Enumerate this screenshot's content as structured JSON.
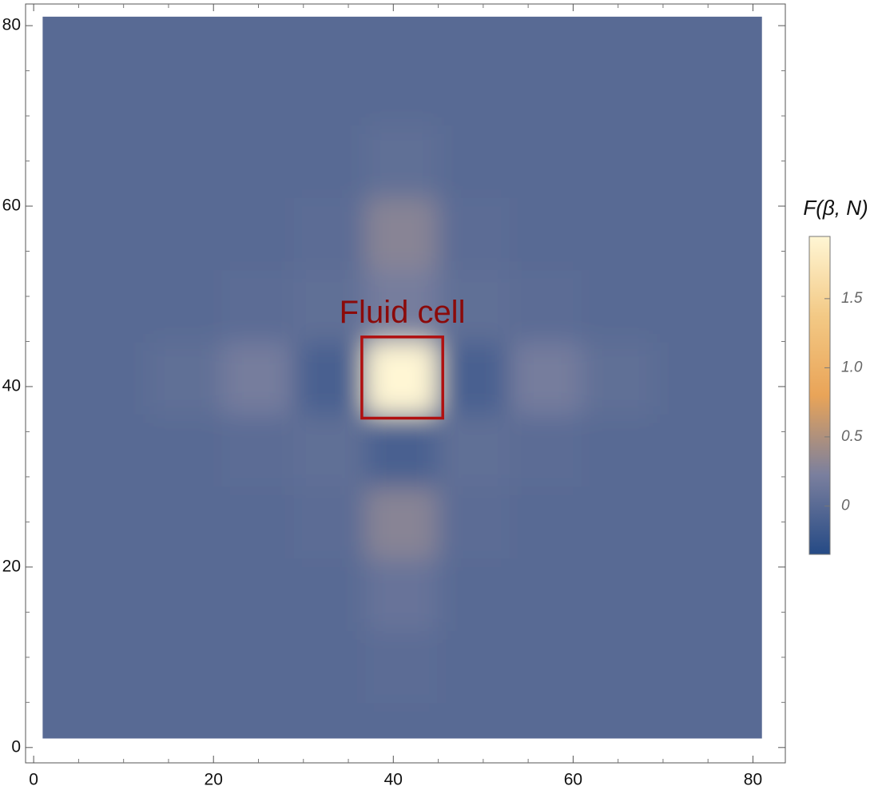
{
  "chart_data": {
    "type": "heatmap",
    "x": [
      1,
      9,
      17,
      25,
      33,
      41,
      49,
      57,
      65,
      73,
      81
    ],
    "y": [
      1,
      9,
      17,
      25,
      33,
      41,
      49,
      57,
      65,
      73,
      81
    ],
    "z": [
      [
        0,
        0,
        0,
        0,
        0,
        0,
        0,
        0,
        0,
        0,
        0
      ],
      [
        0,
        0,
        0,
        0,
        0,
        0.02,
        0,
        0,
        0,
        0,
        0
      ],
      [
        0,
        0,
        0,
        0,
        0,
        0.1,
        0,
        0,
        0,
        0,
        0
      ],
      [
        0,
        0,
        0,
        0,
        0.02,
        0.3,
        0.02,
        0,
        0,
        0,
        0
      ],
      [
        0,
        0,
        0,
        0.02,
        0.05,
        -0.1,
        0.05,
        0.02,
        0,
        0,
        0
      ],
      [
        0,
        0,
        0.05,
        0.2,
        -0.1,
        1.95,
        -0.1,
        0.2,
        0.05,
        0,
        0
      ],
      [
        0,
        0,
        0,
        0.02,
        0.05,
        0.2,
        0.05,
        0.02,
        0,
        0,
        0
      ],
      [
        0,
        0,
        0,
        0,
        0.02,
        0.3,
        0.02,
        0,
        0,
        0,
        0
      ],
      [
        0,
        0,
        0,
        0,
        0,
        0.05,
        0,
        0,
        0,
        0,
        0
      ],
      [
        0,
        0,
        0,
        0,
        0,
        0,
        0,
        0,
        0,
        0,
        0
      ],
      [
        0,
        0,
        0,
        0,
        0,
        0,
        0,
        0,
        0,
        0,
        0
      ]
    ],
    "xlim": [
      -0.9,
      83.6
    ],
    "ylim": [
      -1.7,
      82.4
    ],
    "xticks": [
      0,
      20,
      40,
      60,
      80
    ],
    "yticks": [
      0,
      20,
      40,
      60,
      80
    ],
    "minor_ticks": [
      5,
      10,
      15,
      25,
      30,
      35,
      45,
      50,
      55,
      65,
      70,
      75
    ],
    "annotation": {
      "text": "Fluid cell",
      "x": 41,
      "y": 48,
      "color": "#8b0a0a"
    },
    "box": {
      "x": [
        36.5,
        45.5
      ],
      "y": [
        36.5,
        45.5
      ],
      "color": "#b01010"
    },
    "colorbar": {
      "title": "F(β, N)",
      "lim": [
        -0.35,
        1.95
      ],
      "ticks": [
        0,
        0.5,
        {
          "value": 1,
          "label": "1.0"
        },
        1.5
      ],
      "colors": [
        "#254a85",
        "#7a7f9e",
        "#e9a458",
        "#f3c985",
        "#fff6d4"
      ]
    }
  }
}
